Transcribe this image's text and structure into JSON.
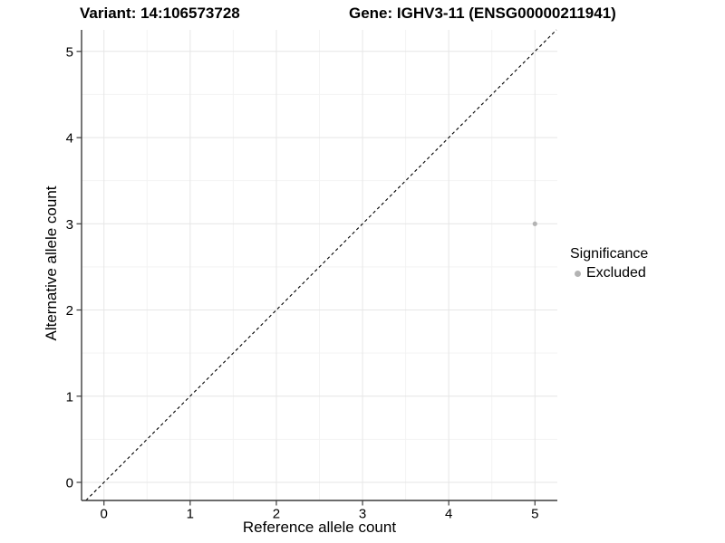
{
  "chart_data": {
    "type": "scatter",
    "variant_title": "Variant: 14:106573728",
    "gene_title": "Gene: IGHV3-11 (ENSG00000211941)",
    "xlabel": "Reference allele count",
    "ylabel": "Alternative allele count",
    "xticks": [
      0,
      1,
      2,
      3,
      4,
      5
    ],
    "yticks": [
      0,
      1,
      2,
      3,
      4,
      5
    ],
    "xlim": [
      -0.26,
      5.26
    ],
    "ylim": [
      -0.21,
      5.25
    ],
    "grid": {
      "major": true,
      "minor": true
    },
    "identity_line": {
      "type": "abline",
      "slope": 1,
      "intercept": 0,
      "style": "dashed",
      "color": "#000000"
    },
    "points": [
      {
        "x": 5,
        "y": 3,
        "significance": "Excluded"
      }
    ],
    "point_color": "#b3b3b3",
    "legend": {
      "title": "Significance",
      "position": "right-center",
      "entries": [
        {
          "label": "Excluded",
          "color": "#b3b3b3"
        }
      ]
    },
    "colors": {
      "grid_major": "#e6e6e6",
      "grid_minor": "#f3f3f3",
      "axis": "#3c3c3c",
      "text": "#000000",
      "background": "#ffffff"
    }
  }
}
